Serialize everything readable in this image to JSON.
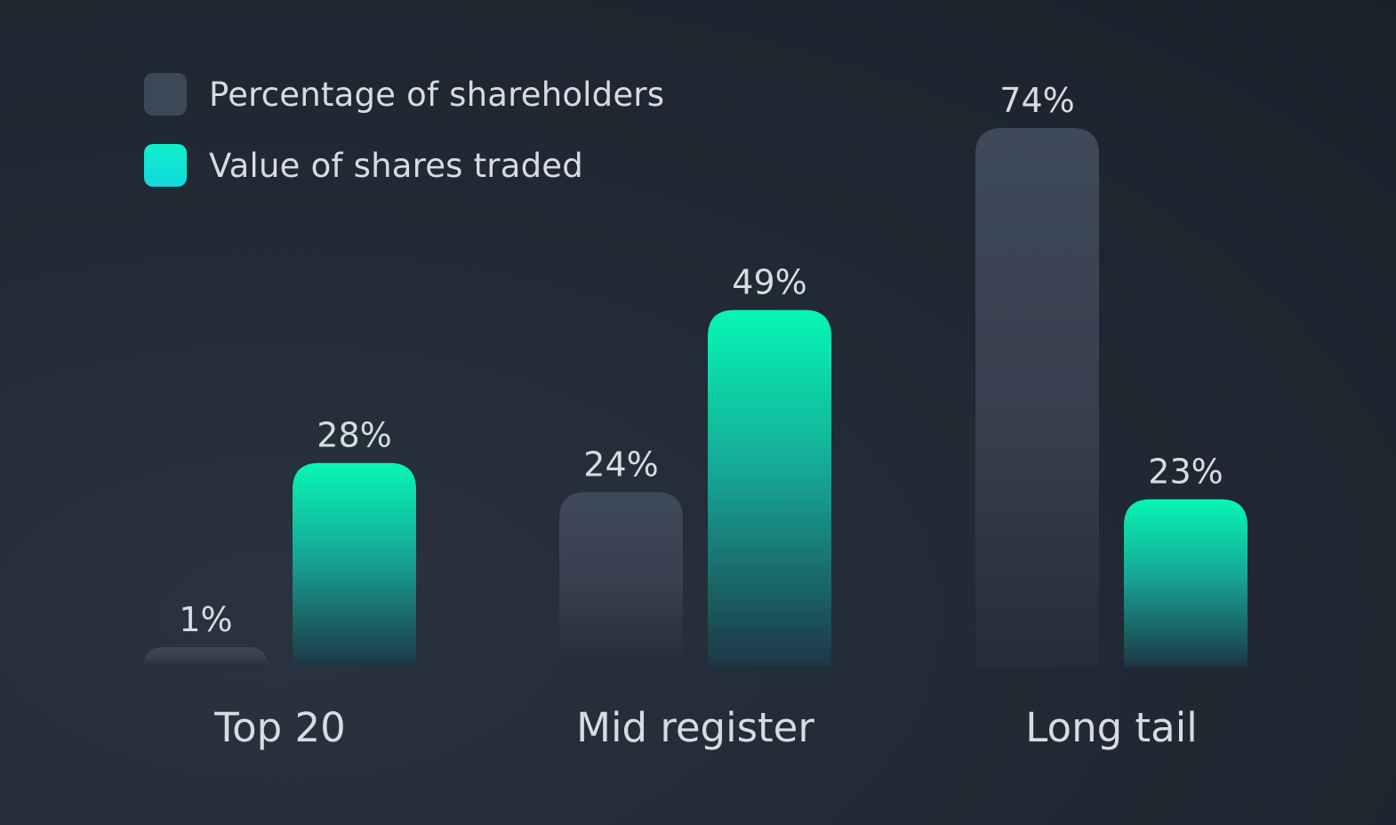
{
  "chart_data": {
    "type": "bar",
    "title": "",
    "xlabel": "",
    "ylabel": "",
    "categories": [
      "Top 20",
      "Mid register",
      "Long tail"
    ],
    "series": [
      {
        "name": "Percentage of shareholders",
        "values": [
          1,
          24,
          74
        ],
        "labels": [
          "1%",
          "24%",
          "74%"
        ],
        "color": "#3c4858"
      },
      {
        "name": "Value of shares traded",
        "values": [
          28,
          49,
          23
        ],
        "labels": [
          "28%",
          "49%",
          "23%"
        ],
        "color": "#06f5b6"
      }
    ],
    "ylim": [
      0,
      74
    ],
    "grid": false,
    "legend": "top-left"
  },
  "colors": {
    "background": "#1f2630",
    "shareholders_bar": "#3c4858",
    "traded_bar_top": "#06f5b6",
    "traded_bar_bottom": "#1d3a48",
    "legend_traded_swatch": "#11e8d4",
    "text": "#d7dbe2"
  }
}
